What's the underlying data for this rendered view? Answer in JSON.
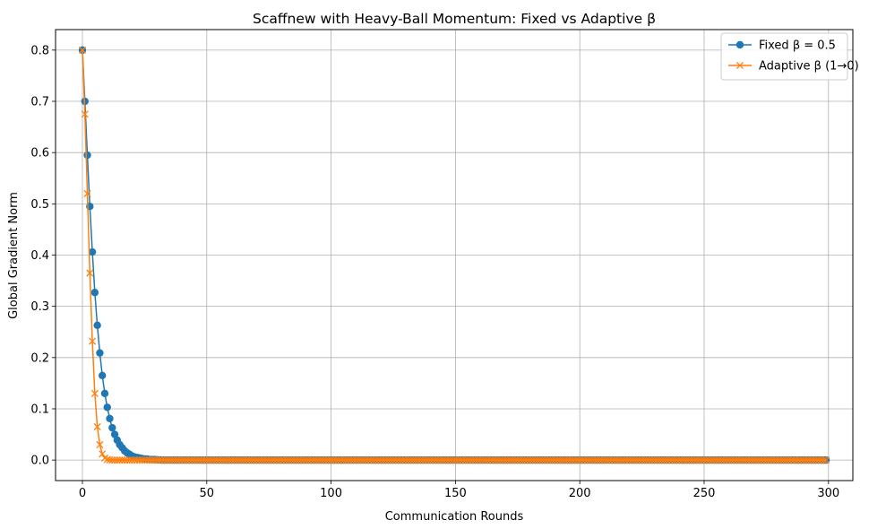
{
  "chart_data": {
    "type": "line",
    "title": "Scaffnew with Heavy-Ball Momentum: Fixed vs Adaptive β",
    "xlabel": "Communication Rounds",
    "ylabel": "Global Gradient Norm",
    "xlim": [
      -10.8,
      309.8
    ],
    "ylim": [
      -0.04,
      0.84
    ],
    "xticks": [
      0,
      50,
      100,
      150,
      200,
      250,
      300
    ],
    "yticks": [
      0.0,
      0.1,
      0.2,
      0.3,
      0.4,
      0.5,
      0.6,
      0.7,
      0.8
    ],
    "xtick_labels": [
      "0",
      "50",
      "100",
      "150",
      "200",
      "250",
      "300"
    ],
    "ytick_labels": [
      "0.0",
      "0.1",
      "0.2",
      "0.3",
      "0.4",
      "0.5",
      "0.6",
      "0.7",
      "0.8"
    ],
    "grid": true,
    "legend_position": "upper-right",
    "n_points": 300,
    "series": [
      {
        "name": "Fixed β = 0.5",
        "color": "#1f77b4",
        "marker": "circle",
        "values_head": [
          0.8,
          0.7,
          0.595,
          0.495,
          0.406,
          0.327,
          0.263,
          0.209,
          0.165,
          0.13,
          0.103,
          0.081,
          0.063,
          0.05,
          0.039,
          0.03,
          0.024,
          0.018,
          0.014,
          0.011,
          0.008,
          0.006,
          0.005,
          0.004,
          0.003,
          0.002,
          0.002,
          0.001,
          0.001,
          0.001,
          0.0005,
          0.0003
        ],
        "tail_value": 0.0
      },
      {
        "name": "Adaptive β (1→0)",
        "color": "#ff7f0e",
        "marker": "x",
        "values_head": [
          0.8,
          0.675,
          0.52,
          0.365,
          0.232,
          0.13,
          0.065,
          0.03,
          0.012,
          0.004,
          0.001,
          0.0003
        ],
        "tail_value": 0.0
      }
    ]
  }
}
